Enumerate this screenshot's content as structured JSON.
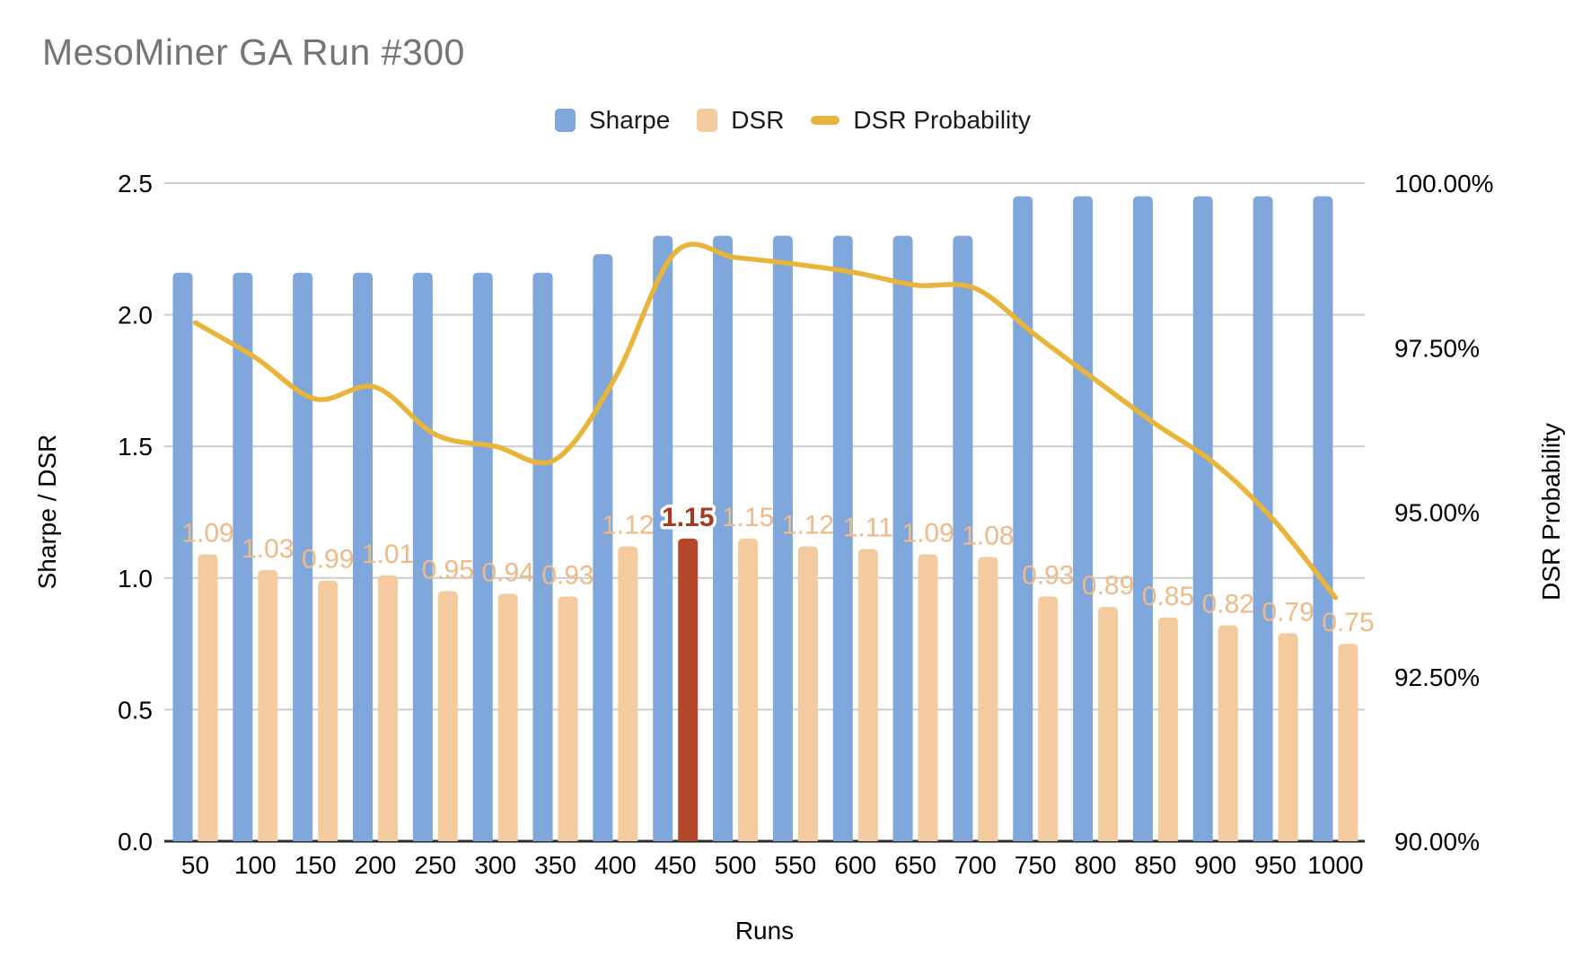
{
  "title": "MesoMiner GA Run #300",
  "legend": {
    "items": [
      {
        "label": "Sharpe",
        "swatch": "square",
        "color": "#7fa7db"
      },
      {
        "label": "DSR",
        "swatch": "square",
        "color": "#f3cb9e"
      },
      {
        "label": "DSR Probability",
        "swatch": "line",
        "color": "#e9b43a"
      }
    ]
  },
  "chart_data": {
    "type": "combo",
    "x": [
      50,
      100,
      150,
      200,
      250,
      300,
      350,
      400,
      450,
      500,
      550,
      600,
      650,
      700,
      750,
      800,
      850,
      900,
      950,
      1000
    ],
    "xlabel": "Runs",
    "left_axis": {
      "title": "Sharpe / DSR",
      "ticks": [
        "0.0",
        "0.5",
        "1.0",
        "1.5",
        "2.0",
        "2.5"
      ],
      "range": [
        0,
        2.5
      ]
    },
    "right_axis": {
      "title": "DSR Probability",
      "ticks": [
        "90.00%",
        "92.50%",
        "95.00%",
        "97.50%",
        "100.00%"
      ],
      "range": [
        90,
        100
      ]
    },
    "grid": true,
    "legend_position": "top",
    "series": [
      {
        "name": "Sharpe",
        "type": "bar",
        "axis": "left",
        "color": "#7fa7db",
        "values": [
          2.16,
          2.16,
          2.16,
          2.16,
          2.16,
          2.16,
          2.16,
          2.23,
          2.3,
          2.3,
          2.3,
          2.3,
          2.3,
          2.3,
          2.45,
          2.45,
          2.45,
          2.45,
          2.45,
          2.45
        ]
      },
      {
        "name": "DSR",
        "type": "bar",
        "axis": "left",
        "color": "#f3cb9e",
        "values": [
          1.09,
          1.03,
          0.99,
          1.01,
          0.95,
          0.94,
          0.93,
          1.12,
          1.15,
          1.15,
          1.12,
          1.11,
          1.09,
          1.08,
          0.93,
          0.89,
          0.85,
          0.82,
          0.79,
          0.75
        ],
        "labels": [
          "1.09",
          "1.03",
          "0.99",
          "1.01",
          "0.95",
          "0.94",
          "0.93",
          "1.12",
          "1.15",
          "1.15",
          "1.12",
          "1.11",
          "1.09",
          "1.08",
          "0.93",
          "0.89",
          "0.85",
          "0.82",
          "0.79",
          "0.75"
        ],
        "label_color": "#eeba87",
        "highlight_index": 8,
        "highlight_color": "#b5482b",
        "highlight_label_color": "#a43b21"
      },
      {
        "name": "DSR Probability",
        "type": "line",
        "axis": "right",
        "color": "#e9b43a",
        "values": [
          97.88,
          97.35,
          96.72,
          96.9,
          96.18,
          96.0,
          95.8,
          97.05,
          98.95,
          98.87,
          98.77,
          98.64,
          98.45,
          98.4,
          97.69,
          97.01,
          96.34,
          95.73,
          94.85,
          93.7
        ]
      }
    ],
    "colors": {
      "gridline": "#cccccc",
      "baseline": "#2b2b2b",
      "tick_text": "#000000",
      "title_text": "#757575"
    }
  }
}
